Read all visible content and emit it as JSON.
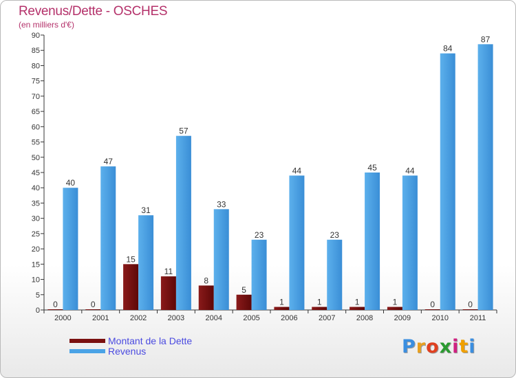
{
  "title": "Revenus/Dette - OSCHES",
  "subtitle": "(en milliers d'€)",
  "logo": {
    "text": "Proxiti",
    "letter_colors": [
      "#3a8ee0",
      "#e8a020",
      "#e04020",
      "#2a9a30",
      "#d02080",
      "#f0a000",
      "#3a8ee0"
    ]
  },
  "colors": {
    "dette": "#7a1010",
    "revenus": "#4aa3e6",
    "axis": "#333333",
    "title": "#b4316a",
    "legend_text": "#4a4ae0"
  },
  "chart_data": {
    "type": "bar",
    "title": "Revenus/Dette - OSCHES",
    "subtitle": "(en milliers d'€)",
    "xlabel": "",
    "ylabel": "",
    "ylim": [
      0,
      90
    ],
    "yticks": [
      0,
      5,
      10,
      15,
      20,
      25,
      30,
      35,
      40,
      45,
      50,
      55,
      60,
      65,
      70,
      75,
      80,
      85,
      90
    ],
    "grid": false,
    "legend_position": "bottom-left",
    "categories": [
      "2000",
      "2001",
      "2002",
      "2003",
      "2004",
      "2005",
      "2006",
      "2007",
      "2008",
      "2009",
      "2010",
      "2011"
    ],
    "series": [
      {
        "name": "Montant de la Dette",
        "values": [
          0,
          0,
          15,
          11,
          8,
          5,
          1,
          1,
          1,
          1,
          0,
          0
        ]
      },
      {
        "name": "Revenus",
        "values": [
          40,
          47,
          31,
          57,
          33,
          23,
          44,
          23,
          45,
          44,
          84,
          87
        ]
      }
    ]
  }
}
